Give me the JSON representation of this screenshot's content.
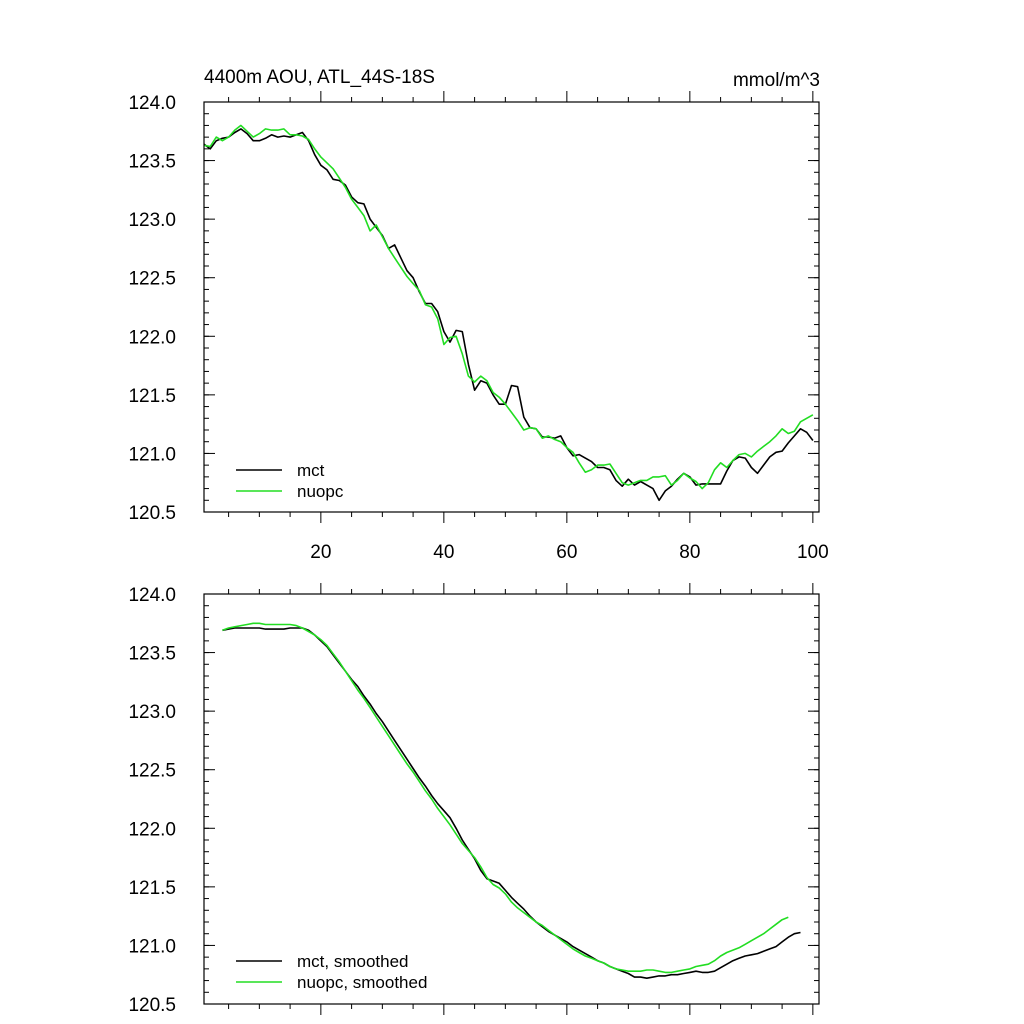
{
  "colors": {
    "mct": "#000000",
    "nuopc": "#22dd22"
  },
  "chart_data": [
    {
      "type": "line",
      "title": "4400m AOU, ATL_44S-18S",
      "units_label": "mmol/m^3",
      "xlim": [
        1,
        101
      ],
      "ylim": [
        120.5,
        124.0
      ],
      "xticks": [
        20,
        40,
        60,
        80,
        100
      ],
      "yticks": [
        124.0,
        123.5,
        123.0,
        122.5,
        122.0,
        121.5,
        121.0,
        120.5
      ],
      "ytick_labels": [
        "124.0",
        "123.5",
        "123.0",
        "122.5",
        "122.0",
        "121.5",
        "121.0",
        "120.5"
      ],
      "xtick_labels": [
        "20",
        "40",
        "60",
        "80",
        "100"
      ],
      "show_xtick_labels": true,
      "legend_position": "bottom-left",
      "series": [
        {
          "name": "mct",
          "color_key": "mct",
          "x_start": 1,
          "values": [
            123.64,
            123.6,
            123.67,
            123.69,
            123.7,
            123.74,
            123.77,
            123.73,
            123.67,
            123.67,
            123.69,
            123.72,
            123.7,
            123.71,
            123.7,
            123.72,
            123.74,
            123.67,
            123.55,
            123.46,
            123.42,
            123.34,
            123.33,
            123.29,
            123.19,
            123.14,
            123.13,
            123.0,
            122.93,
            122.86,
            122.75,
            122.78,
            122.67,
            122.56,
            122.5,
            122.38,
            122.28,
            122.28,
            122.21,
            122.04,
            121.95,
            122.05,
            122.04,
            121.76,
            121.54,
            121.62,
            121.6,
            121.5,
            121.42,
            121.42,
            121.58,
            121.57,
            121.31,
            121.22,
            121.21,
            121.14,
            121.14,
            121.13,
            121.15,
            121.05,
            120.98,
            120.99,
            120.96,
            120.93,
            120.88,
            120.88,
            120.86,
            120.77,
            120.72,
            120.78,
            120.73,
            120.76,
            120.73,
            120.7,
            120.6,
            120.68,
            120.72,
            120.78,
            120.83,
            120.8,
            120.73,
            120.74,
            120.74,
            120.74,
            120.74,
            120.85,
            120.94,
            120.97,
            120.96,
            120.88,
            120.83,
            120.9,
            120.97,
            121.01,
            121.02,
            121.09,
            121.15,
            121.21,
            121.18,
            121.11
          ]
        },
        {
          "name": "nuopc",
          "color_key": "nuopc",
          "x_start": 1,
          "values": [
            123.63,
            123.62,
            123.7,
            123.67,
            123.7,
            123.76,
            123.8,
            123.75,
            123.7,
            123.73,
            123.77,
            123.76,
            123.76,
            123.77,
            123.72,
            123.72,
            123.71,
            123.68,
            123.6,
            123.53,
            123.48,
            123.43,
            123.35,
            123.27,
            123.17,
            123.1,
            123.03,
            122.9,
            122.95,
            122.85,
            122.75,
            122.67,
            122.59,
            122.51,
            122.45,
            122.39,
            122.27,
            122.25,
            122.15,
            121.93,
            121.99,
            122.0,
            121.85,
            121.66,
            121.61,
            121.66,
            121.62,
            121.52,
            121.48,
            121.42,
            121.35,
            121.28,
            121.2,
            121.22,
            121.21,
            121.13,
            121.15,
            121.12,
            121.1,
            121.05,
            121.01,
            120.92,
            120.84,
            120.86,
            120.9,
            120.9,
            120.91,
            120.83,
            120.75,
            120.73,
            120.75,
            120.77,
            120.77,
            120.8,
            120.8,
            120.81,
            120.73,
            120.77,
            120.83,
            120.79,
            120.76,
            120.7,
            120.75,
            120.86,
            120.92,
            120.88,
            120.94,
            120.99,
            121.0,
            120.97,
            121.02,
            121.06,
            121.1,
            121.15,
            121.21,
            121.17,
            121.19,
            121.27,
            121.3,
            121.33
          ]
        }
      ]
    },
    {
      "type": "line",
      "title": "",
      "units_label": "",
      "xlim": [
        1,
        101
      ],
      "ylim": [
        120.5,
        124.0
      ],
      "xticks": [
        20,
        40,
        60,
        80,
        100
      ],
      "yticks": [
        124.0,
        123.5,
        123.0,
        122.5,
        122.0,
        121.5,
        121.0,
        120.5
      ],
      "ytick_labels": [
        "124.0",
        "123.5",
        "123.0",
        "122.5",
        "122.0",
        "121.5",
        "121.0",
        "120.5"
      ],
      "xtick_labels": [],
      "show_xtick_labels": false,
      "legend_position": "bottom-left",
      "series": [
        {
          "name": "mct, smoothed",
          "color_key": "mct",
          "x_start": 4,
          "values": [
            123.69,
            123.7,
            123.71,
            123.71,
            123.71,
            123.71,
            123.71,
            123.7,
            123.7,
            123.7,
            123.7,
            123.71,
            123.71,
            123.71,
            123.69,
            123.65,
            123.6,
            123.55,
            123.48,
            123.41,
            123.34,
            123.27,
            123.21,
            123.13,
            123.06,
            122.98,
            122.91,
            122.83,
            122.75,
            122.67,
            122.59,
            122.51,
            122.43,
            122.36,
            122.28,
            122.21,
            122.15,
            122.09,
            122.0,
            121.9,
            121.82,
            121.74,
            121.64,
            121.57,
            121.55,
            121.53,
            121.47,
            121.41,
            121.36,
            121.31,
            121.25,
            121.2,
            121.16,
            121.12,
            121.09,
            121.06,
            121.03,
            120.99,
            120.96,
            120.93,
            120.9,
            120.87,
            120.85,
            120.82,
            120.8,
            120.78,
            120.76,
            120.73,
            120.73,
            120.72,
            120.73,
            120.74,
            120.74,
            120.75,
            120.75,
            120.76,
            120.77,
            120.78,
            120.77,
            120.77,
            120.78,
            120.81,
            120.84,
            120.87,
            120.89,
            120.91,
            120.92,
            120.93,
            120.95,
            120.97,
            120.99,
            121.03,
            121.07,
            121.1,
            121.11
          ]
        },
        {
          "name": "nuopc, smoothed",
          "color_key": "nuopc",
          "x_start": 4,
          "values": [
            123.69,
            123.71,
            123.72,
            123.73,
            123.74,
            123.75,
            123.75,
            123.74,
            123.74,
            123.74,
            123.74,
            123.74,
            123.73,
            123.71,
            123.68,
            123.65,
            123.61,
            123.56,
            123.49,
            123.42,
            123.34,
            123.26,
            123.18,
            123.11,
            123.03,
            122.95,
            122.87,
            122.79,
            122.71,
            122.63,
            122.55,
            122.48,
            122.4,
            122.32,
            122.25,
            122.17,
            122.1,
            122.03,
            121.95,
            121.87,
            121.81,
            121.75,
            121.67,
            121.58,
            121.52,
            121.49,
            121.44,
            121.37,
            121.32,
            121.28,
            121.24,
            121.2,
            121.17,
            121.13,
            121.09,
            121.05,
            121.01,
            120.97,
            120.94,
            120.91,
            120.89,
            120.87,
            120.85,
            120.82,
            120.8,
            120.79,
            120.78,
            120.78,
            120.78,
            120.79,
            120.79,
            120.78,
            120.77,
            120.77,
            120.78,
            120.79,
            120.8,
            120.82,
            120.83,
            120.84,
            120.87,
            120.91,
            120.94,
            120.96,
            120.98,
            121.01,
            121.04,
            121.07,
            121.1,
            121.14,
            121.18,
            121.22,
            121.24
          ]
        }
      ]
    }
  ]
}
